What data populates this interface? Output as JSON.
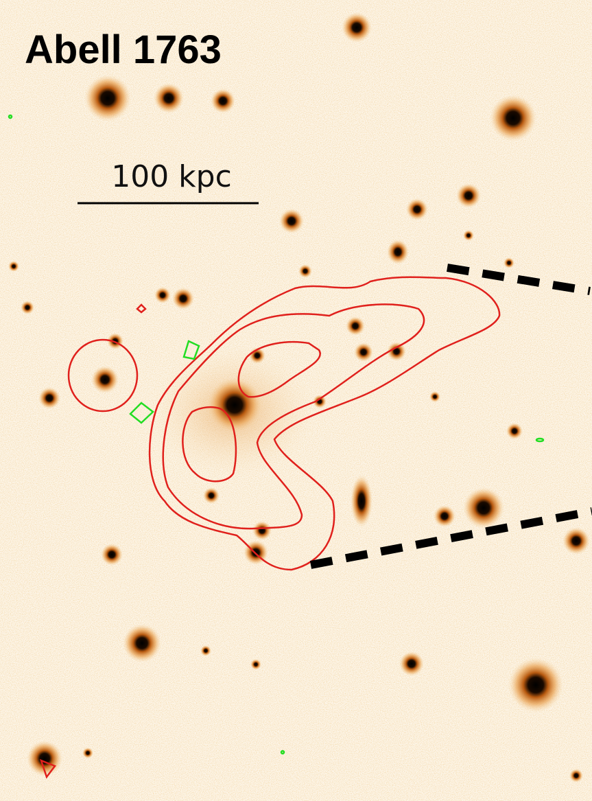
{
  "title": "Abell 1763",
  "scale_bar": "100 kpc"
}
